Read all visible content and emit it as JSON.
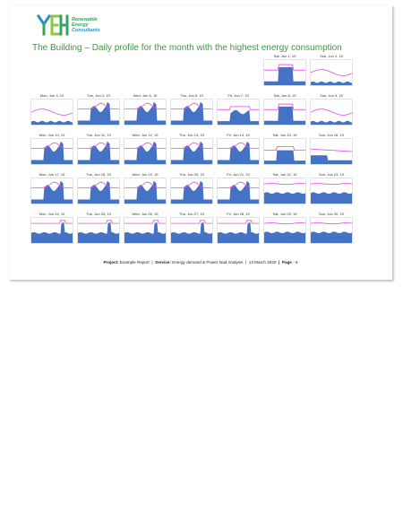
{
  "logo": {
    "line1": "Renewable",
    "line2": "Energy",
    "line3": "Consultants",
    "mark": "YEH"
  },
  "title": "The Building – Daily profile for the month with the highest energy consumption",
  "colors": {
    "area": "#4472c4",
    "line": "#e648e6",
    "title": "#3a9a3c"
  },
  "days": [
    {
      "label": "Sat, Jun 1, 19",
      "profile": "weekend_high"
    },
    {
      "label": "Sun, Jun 2, 19",
      "profile": "low"
    },
    {
      "label": "Mon, Jun 3, 19",
      "profile": "low"
    },
    {
      "label": "Tue, Jun 4, 19",
      "profile": "work"
    },
    {
      "label": "Wed, Jun 5, 19",
      "profile": "work"
    },
    {
      "label": "Thu, Jun 6, 19",
      "profile": "work"
    },
    {
      "label": "Fri, Jun 7, 19",
      "profile": "work_med"
    },
    {
      "label": "Sat, Jun 8, 19",
      "profile": "weekend_high"
    },
    {
      "label": "Sun, Jun 9, 19",
      "profile": "low"
    },
    {
      "label": "Mon, Jun 10, 19",
      "profile": "work"
    },
    {
      "label": "Tue, Jun 11, 19",
      "profile": "work"
    },
    {
      "label": "Wed, Jun 12, 19",
      "profile": "work"
    },
    {
      "label": "Thu, Jun 13, 19",
      "profile": "work"
    },
    {
      "label": "Fri, Jun 14, 19",
      "profile": "work"
    },
    {
      "label": "Sat, Jun 15, 19",
      "profile": "weekend_med"
    },
    {
      "label": "Sun, Jun 16, 19",
      "profile": "low_mid"
    },
    {
      "label": "Mon, Jun 17, 19",
      "profile": "work"
    },
    {
      "label": "Tue, Jun 18, 19",
      "profile": "work"
    },
    {
      "label": "Wed, Jun 19, 19",
      "profile": "work"
    },
    {
      "label": "Thu, Jun 20, 19",
      "profile": "work"
    },
    {
      "label": "Fri, Jun 21, 19",
      "profile": "work"
    },
    {
      "label": "Sat, Jun 22, 19",
      "profile": "flat"
    },
    {
      "label": "Sun, Jun 23, 19",
      "profile": "flat"
    },
    {
      "label": "Mon, Jun 24, 19",
      "profile": "flat_peak"
    },
    {
      "label": "Tue, Jun 25, 19",
      "profile": "flat_peak"
    },
    {
      "label": "Wed, Jun 26, 19",
      "profile": "flat_peak"
    },
    {
      "label": "Thu, Jun 27, 19",
      "profile": "flat_peak"
    },
    {
      "label": "Fri, Jun 28, 19",
      "profile": "flat_peak"
    },
    {
      "label": "Sat, Jun 29, 19",
      "profile": "flat"
    },
    {
      "label": "Sun, Jun 30, 19",
      "profile": "flat"
    }
  ],
  "footer": {
    "project_label": "Project:",
    "project_value": "Example Report",
    "sep1": "|",
    "service_label": "Service:",
    "service_value": "Energy demand & Power load Analysis",
    "sep2": "|",
    "date": "13 March 2020",
    "sep3": "|",
    "page_label": "Page",
    "page_value": "- 6"
  }
}
